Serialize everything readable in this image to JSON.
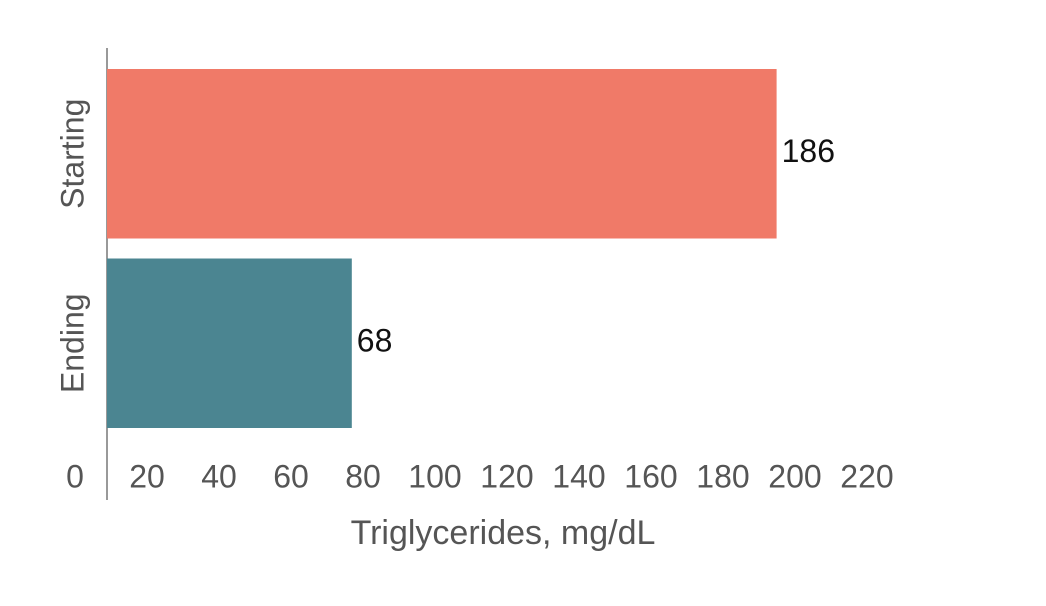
{
  "chart_data": {
    "type": "hbar",
    "x_label": "Triglycerides, mg/dL",
    "categories": [
      "Starting",
      "Ending"
    ],
    "values": [
      186,
      68
    ],
    "colors": [
      "#f07a68",
      "#4b8591"
    ],
    "xlim": [
      0,
      220
    ],
    "xticks": [
      0,
      20,
      40,
      60,
      80,
      100,
      120,
      140,
      160,
      180,
      200,
      220
    ]
  }
}
